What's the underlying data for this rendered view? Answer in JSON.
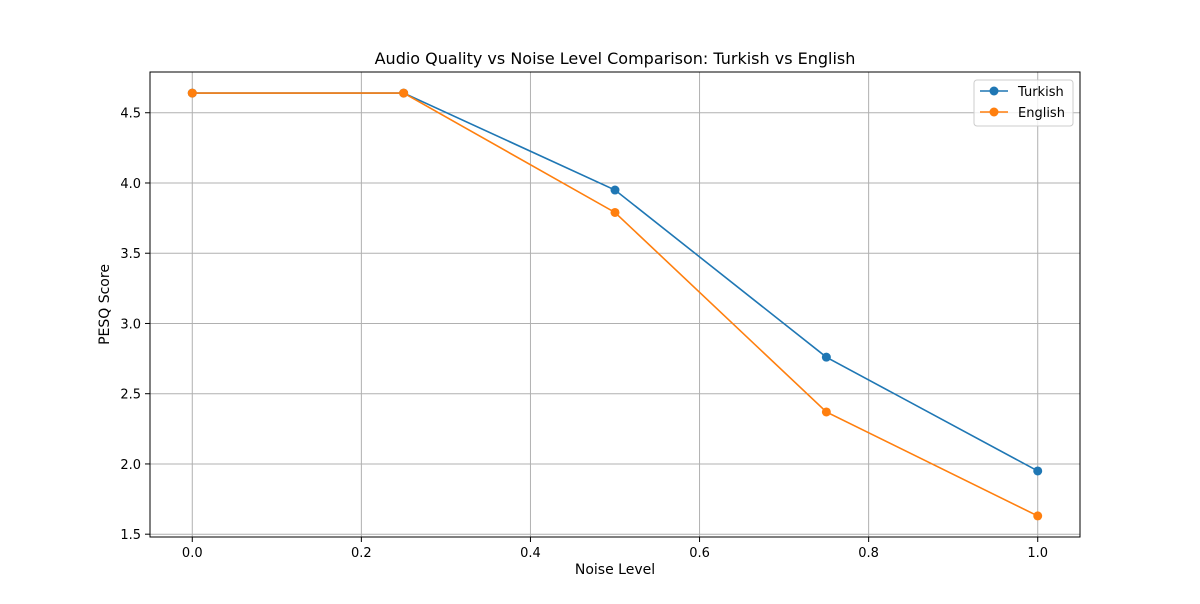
{
  "chart_data": {
    "type": "line",
    "title": "Audio Quality vs Noise Level Comparison: Turkish vs English",
    "xlabel": "Noise Level",
    "ylabel": "PESQ Score",
    "xlim": [
      -0.05,
      1.05
    ],
    "ylim": [
      1.48,
      4.79
    ],
    "xticks": [
      0.0,
      0.2,
      0.4,
      0.6,
      0.8,
      1.0
    ],
    "xtick_labels": [
      "0.0",
      "0.2",
      "0.4",
      "0.6",
      "0.8",
      "1.0"
    ],
    "yticks": [
      1.5,
      2.0,
      2.5,
      3.0,
      3.5,
      4.0,
      4.5
    ],
    "ytick_labels": [
      "1.5",
      "2.0",
      "2.5",
      "3.0",
      "3.5",
      "4.0",
      "4.5"
    ],
    "grid": true,
    "legend_position": "top-right",
    "x": [
      0.0,
      0.25,
      0.5,
      0.75,
      1.0
    ],
    "series": [
      {
        "name": "Turkish",
        "color": "#1f77b4",
        "values": [
          4.64,
          4.64,
          3.95,
          2.76,
          1.95
        ]
      },
      {
        "name": "English",
        "color": "#ff7f0e",
        "values": [
          4.64,
          4.64,
          3.79,
          2.37,
          1.63
        ]
      }
    ]
  }
}
